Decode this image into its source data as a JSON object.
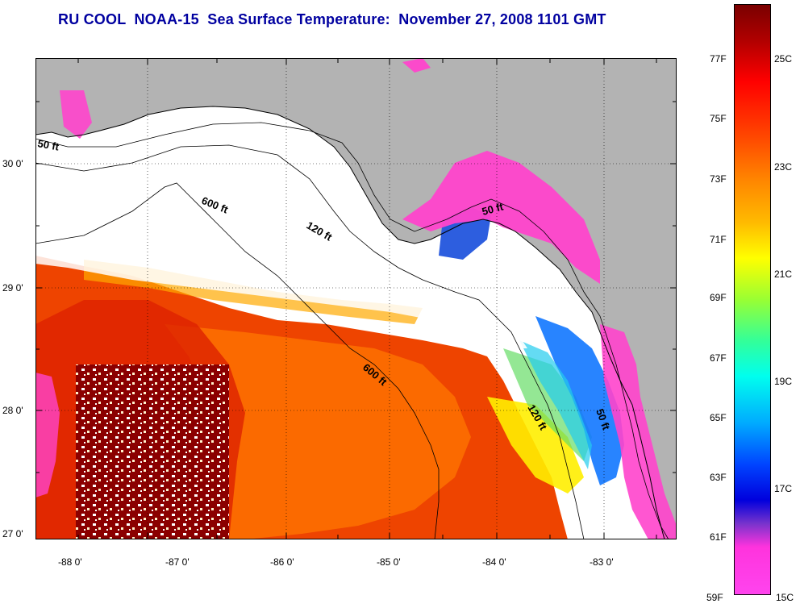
{
  "title": "RU COOL  NOAA-15  Sea Surface Temperature:  November 27, 2008 1101 GMT",
  "lat_ticks": [
    "30 0'",
    "29 0'",
    "28 0'",
    "27 0'"
  ],
  "lon_ticks": [
    "-88 0'",
    "-87 0'",
    "-86 0'",
    "-85 0'",
    "-84 0'",
    "-83 0'"
  ],
  "isobaths": {
    "l50w": "50 ft",
    "l600w": "600 ft",
    "l120c": "120 ft",
    "l50e": "50 ft",
    "l600s": "600 ft",
    "l120s": "120 ft",
    "l50se": "50 ft"
  },
  "colorbar": {
    "f_labels": [
      "77F",
      "75F",
      "73F",
      "71F",
      "69F",
      "67F",
      "65F",
      "63F",
      "61F",
      "59F"
    ],
    "c_labels": [
      "25C",
      "23C",
      "21C",
      "19C",
      "17C",
      "15C"
    ]
  },
  "colors": {
    "land": "#b3b3b3",
    "cloud": "#ffffff",
    "title": "#0000a0",
    "warm_dark": "#8b0000",
    "warm": "#ee4400",
    "cold": "#ff44cc"
  }
}
